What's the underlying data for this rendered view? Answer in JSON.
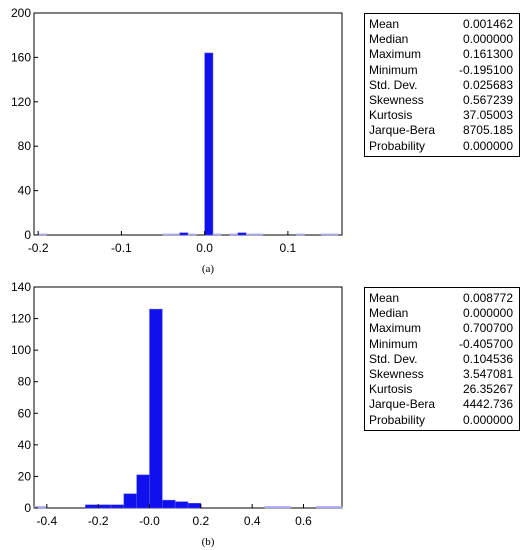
{
  "chart_data": [
    {
      "type": "bar",
      "panel_label": "(a)",
      "bar_color": "#1010ee",
      "minor_bar_color": "#a9a9f5",
      "xlim": [
        -0.205,
        0.165
      ],
      "ylim": [
        0,
        200
      ],
      "xticks": [
        -0.2,
        -0.1,
        0.0,
        0.1
      ],
      "xtick_labels": [
        "-0.2",
        "-0.1",
        "0.0",
        "0.1"
      ],
      "yticks": [
        0,
        40,
        80,
        120,
        160,
        200
      ],
      "ytick_labels": [
        "0",
        "40",
        "80",
        "120",
        "160",
        "200"
      ],
      "bin_width": 0.01,
      "bins": [
        {
          "x": -0.195,
          "value": 1
        },
        {
          "x": -0.045,
          "value": 1
        },
        {
          "x": -0.035,
          "value": 1
        },
        {
          "x": -0.025,
          "value": 2
        },
        {
          "x": -0.015,
          "value": 1
        },
        {
          "x": 0.005,
          "value": 164
        },
        {
          "x": 0.015,
          "value": 1
        },
        {
          "x": 0.035,
          "value": 1
        },
        {
          "x": 0.045,
          "value": 2
        },
        {
          "x": 0.055,
          "value": 1
        },
        {
          "x": 0.065,
          "value": 1
        },
        {
          "x": 0.115,
          "value": 1
        },
        {
          "x": 0.145,
          "value": 1
        },
        {
          "x": 0.155,
          "value": 1
        }
      ],
      "stats": [
        {
          "label": "Mean",
          "value": "0.001462"
        },
        {
          "label": "Median",
          "value": "0.000000"
        },
        {
          "label": "Maximum",
          "value": "0.161300"
        },
        {
          "label": "Minimum",
          "value": "-0.195100"
        },
        {
          "label": "Std. Dev.",
          "value": "0.025683"
        },
        {
          "label": "Skewness",
          "value": "0.567239"
        },
        {
          "label": "Kurtosis",
          "value": "37.05003"
        },
        {
          "label": "Jarque-Bera",
          "value": "8705.185"
        },
        {
          "label": "Probability",
          "value": "0.000000"
        }
      ]
    },
    {
      "type": "bar",
      "panel_label": "(b)",
      "bar_color": "#1010ee",
      "minor_bar_color": "#a9a9f5",
      "xlim": [
        -0.45,
        0.75
      ],
      "ylim": [
        0,
        140
      ],
      "xticks": [
        -0.4,
        -0.2,
        0.0,
        0.2,
        0.4,
        0.6
      ],
      "xtick_labels": [
        "-0.4",
        "-0.2",
        "-0.0",
        "0.2",
        "0.4",
        "0.6"
      ],
      "yticks": [
        0,
        20,
        40,
        60,
        80,
        100,
        120,
        140
      ],
      "ytick_labels": [
        "0",
        "20",
        "40",
        "60",
        "80",
        "100",
        "120",
        "140"
      ],
      "bin_width": 0.05,
      "bins": [
        {
          "x": -0.425,
          "value": 1
        },
        {
          "x": -0.225,
          "value": 2
        },
        {
          "x": -0.175,
          "value": 2
        },
        {
          "x": -0.125,
          "value": 2
        },
        {
          "x": -0.075,
          "value": 9
        },
        {
          "x": -0.025,
          "value": 21
        },
        {
          "x": 0.025,
          "value": 126
        },
        {
          "x": 0.075,
          "value": 5
        },
        {
          "x": 0.125,
          "value": 4
        },
        {
          "x": 0.175,
          "value": 3
        },
        {
          "x": 0.475,
          "value": 1
        },
        {
          "x": 0.525,
          "value": 1
        },
        {
          "x": 0.675,
          "value": 1
        },
        {
          "x": 0.725,
          "value": 1
        }
      ],
      "stats": [
        {
          "label": "Mean",
          "value": "0.008772"
        },
        {
          "label": "Median",
          "value": "0.000000"
        },
        {
          "label": "Maximum",
          "value": "0.700700"
        },
        {
          "label": "Minimum",
          "value": "-0.405700"
        },
        {
          "label": "Std. Dev.",
          "value": "0.104536"
        },
        {
          "label": "Skewness",
          "value": "3.547081"
        },
        {
          "label": "Kurtosis",
          "value": "26.35267"
        },
        {
          "label": "Jarque-Bera",
          "value": "4442.736"
        },
        {
          "label": "Probability",
          "value": "0.000000"
        }
      ]
    }
  ]
}
